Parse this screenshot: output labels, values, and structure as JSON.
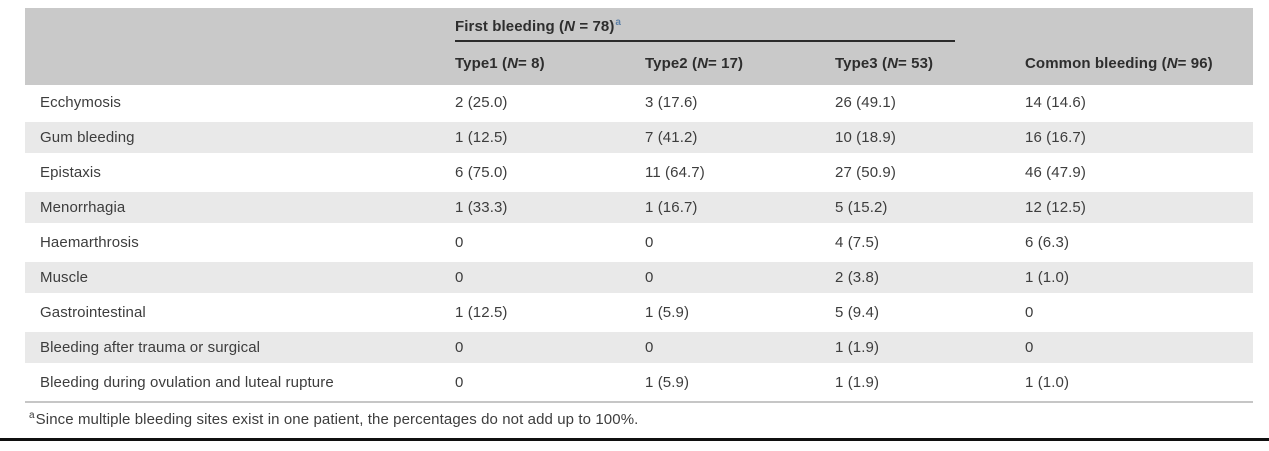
{
  "table": {
    "group_header": {
      "prefix": "First bleeding (",
      "n": "N",
      "suffix": " = 78)",
      "marker": "a"
    },
    "columns": [
      {
        "prefix": "Type1 (",
        "n": "N",
        "suffix": " = 8)"
      },
      {
        "prefix": "Type2 (",
        "n": "N",
        "suffix": " = 17)"
      },
      {
        "prefix": "Type3 (",
        "n": "N",
        "suffix": " = 53)"
      },
      {
        "prefix": "Common bleeding (",
        "n": "N",
        "suffix": " = 96)"
      }
    ],
    "rows": [
      {
        "label": "Ecchymosis",
        "values": [
          "2 (25.0)",
          "3 (17.6)",
          "26 (49.1)",
          "14 (14.6)"
        ]
      },
      {
        "label": "Gum bleeding",
        "values": [
          "1 (12.5)",
          "7 (41.2)",
          "10 (18.9)",
          "16 (16.7)"
        ]
      },
      {
        "label": "Epistaxis",
        "values": [
          "6 (75.0)",
          "11 (64.7)",
          "27 (50.9)",
          "46 (47.9)"
        ]
      },
      {
        "label": "Menorrhagia",
        "values": [
          "1 (33.3)",
          "1 (16.7)",
          "5 (15.2)",
          "12 (12.5)"
        ]
      },
      {
        "label": "Haemarthrosis",
        "values": [
          "0",
          "0",
          "4 (7.5)",
          "6 (6.3)"
        ]
      },
      {
        "label": "Muscle",
        "values": [
          "0",
          "0",
          "2 (3.8)",
          "1 (1.0)"
        ]
      },
      {
        "label": "Gastrointestinal",
        "values": [
          "1 (12.5)",
          "1 (5.9)",
          "5 (9.4)",
          "0"
        ]
      },
      {
        "label": "Bleeding after trauma or surgical",
        "values": [
          "0",
          "0",
          "1 (1.9)",
          "0"
        ]
      },
      {
        "label": "Bleeding during ovulation and luteal rupture",
        "values": [
          "0",
          "1 (5.9)",
          "1 (1.9)",
          "1 (1.0)"
        ]
      }
    ],
    "footnote": {
      "marker": "a",
      "text": "Since multiple bleeding sites exist in one patient, the percentages do not add up to 100%."
    }
  },
  "colors": {
    "header_bg": "#c9c9c9",
    "row_alt_bg": "#e9e9e9",
    "text": "#3d3d3d",
    "footnote_marker_accent": "#5d80a7",
    "bottom_rule": "#101010"
  }
}
